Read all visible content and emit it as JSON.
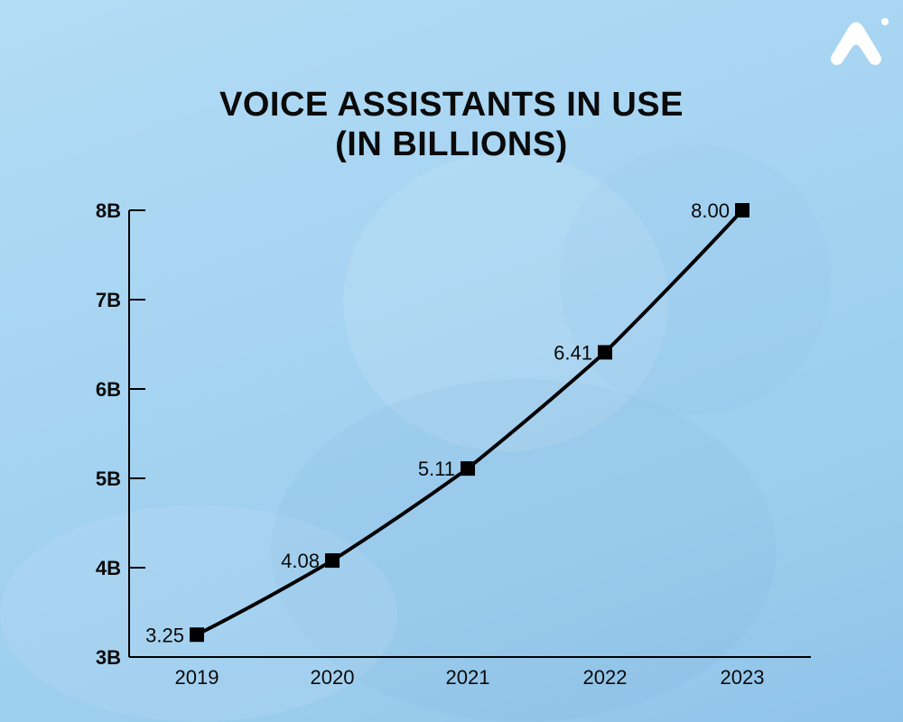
{
  "title_line1": "VOICE ASSISTANTS IN USE",
  "title_line2": "(IN BILLIONS)",
  "colors": {
    "background": "#a6d4f2",
    "line": "#000000",
    "text": "#0a0a0a",
    "logo": "#ffffff"
  },
  "logo_icon": "brand-logo-icon",
  "chart_data": {
    "type": "line",
    "title": "VOICE ASSISTANTS IN USE (IN BILLIONS)",
    "x": [
      "2019",
      "2020",
      "2021",
      "2022",
      "2023"
    ],
    "series": [
      {
        "values": [
          3.25,
          4.08,
          5.11,
          6.41,
          8.0
        ],
        "value_labels": [
          "3.25",
          "4.08",
          "5.11",
          "6.41",
          "8.00"
        ],
        "marker": "square"
      }
    ],
    "ylim": [
      3,
      8
    ],
    "yticks": [
      3,
      4,
      5,
      6,
      7,
      8
    ],
    "ytick_labels": [
      "3B",
      "4B",
      "5B",
      "6B",
      "7B",
      "8B"
    ],
    "xlabel": "",
    "ylabel": "",
    "grid": false,
    "legend": "none"
  }
}
